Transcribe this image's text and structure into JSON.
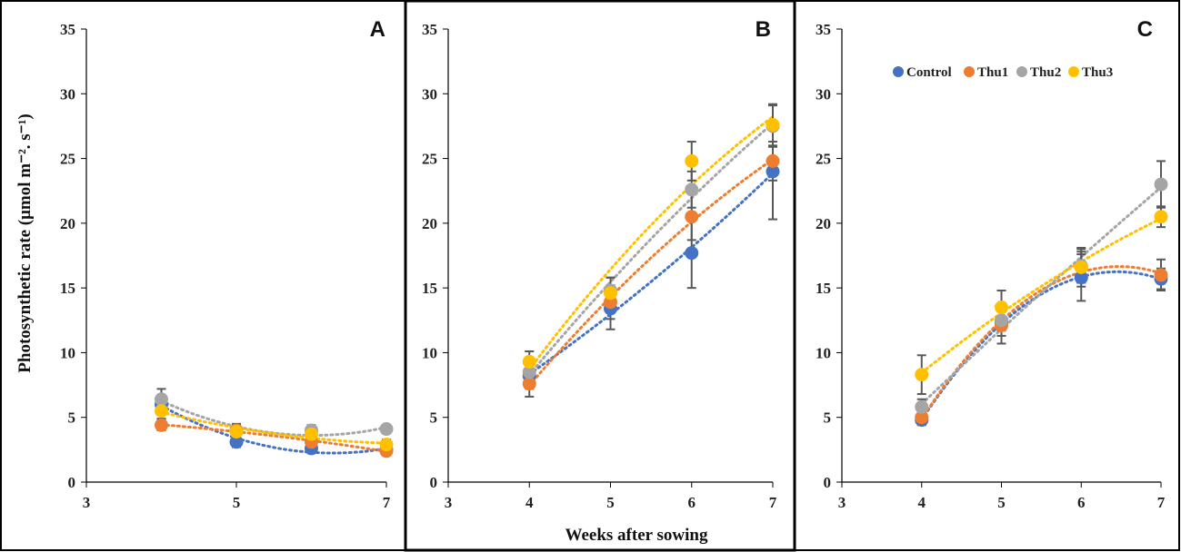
{
  "figure": {
    "ylabel": "Photosynthetic rate (μmol m⁻². s⁻¹)",
    "xlabel": "Weeks after sowing"
  },
  "legend": [
    "Control",
    "Thu1",
    "Thu2",
    "Thu3"
  ],
  "colors": {
    "Control": "#4472C4",
    "Thu1": "#ED7D31",
    "Thu2": "#A5A5A5",
    "Thu3": "#FFC000",
    "errorbar": "#595959",
    "axis": "#000000"
  },
  "chart_data": [
    {
      "type": "scatter",
      "panel": "A",
      "title": "A",
      "xlabel": "",
      "ylabel": "Photosynthetic rate (μmol m⁻². s⁻¹)",
      "xlim": [
        3,
        7
      ],
      "ylim": [
        0,
        35
      ],
      "xticks": [
        3,
        5,
        7
      ],
      "yticks": [
        0,
        5,
        10,
        15,
        20,
        25,
        30,
        35
      ],
      "trendline": "dotted polynomial",
      "x": [
        4,
        5,
        6,
        7
      ],
      "series": [
        {
          "name": "Control",
          "values": [
            6.0,
            3.1,
            2.6,
            2.5
          ],
          "errors": [
            0.6,
            0.4,
            0.3,
            0.3
          ]
        },
        {
          "name": "Thu1",
          "values": [
            4.4,
            4.0,
            3.1,
            2.4
          ],
          "errors": [
            0.4,
            0.5,
            0.4,
            0.3
          ]
        },
        {
          "name": "Thu2",
          "values": [
            6.4,
            3.9,
            4.0,
            4.1
          ],
          "errors": [
            0.8,
            0.5,
            0.4,
            0.3
          ]
        },
        {
          "name": "Thu3",
          "values": [
            5.5,
            3.9,
            3.7,
            2.9
          ],
          "errors": [
            0.6,
            0.5,
            0.4,
            0.4
          ]
        }
      ]
    },
    {
      "type": "scatter",
      "panel": "B",
      "title": "B",
      "xlabel": "Weeks after sowing",
      "ylabel": "",
      "xlim": [
        3,
        7
      ],
      "ylim": [
        0,
        35
      ],
      "xticks": [
        3,
        4,
        5,
        6,
        7
      ],
      "yticks": [
        0,
        5,
        10,
        15,
        20,
        25,
        30,
        35
      ],
      "trendline": "dotted polynomial",
      "x": [
        4,
        5,
        6,
        7
      ],
      "series": [
        {
          "name": "Control",
          "values": [
            8.2,
            13.4,
            17.7,
            24.0
          ],
          "errors": [
            1.0,
            1.6,
            2.7,
            3.7
          ]
        },
        {
          "name": "Thu1",
          "values": [
            7.6,
            13.9,
            20.5,
            24.8
          ],
          "errors": [
            1.0,
            1.3,
            1.8,
            1.5
          ]
        },
        {
          "name": "Thu2",
          "values": [
            8.5,
            14.8,
            22.6,
            27.5
          ],
          "errors": [
            0.8,
            1.0,
            1.4,
            1.6
          ]
        },
        {
          "name": "Thu3",
          "values": [
            9.3,
            14.6,
            24.8,
            27.6
          ],
          "errors": [
            0.8,
            1.2,
            1.5,
            1.6
          ]
        }
      ]
    },
    {
      "type": "scatter",
      "panel": "C",
      "title": "C",
      "xlabel": "",
      "ylabel": "",
      "xlim": [
        3,
        7
      ],
      "ylim": [
        0,
        35
      ],
      "xticks": [
        3,
        4,
        5,
        6,
        7
      ],
      "yticks": [
        0,
        5,
        10,
        15,
        20,
        25,
        30,
        35
      ],
      "legend": "top",
      "trendline": "dotted polynomial",
      "x": [
        4,
        5,
        6,
        7
      ],
      "series": [
        {
          "name": "Control",
          "values": [
            4.8,
            12.3,
            15.8,
            15.7
          ],
          "errors": [
            0.4,
            1.0,
            1.8,
            0.8
          ]
        },
        {
          "name": "Thu1",
          "values": [
            5.0,
            12.1,
            16.6,
            16.0
          ],
          "errors": [
            0.5,
            1.4,
            1.5,
            1.2
          ]
        },
        {
          "name": "Thu2",
          "values": [
            5.8,
            12.5,
            16.7,
            23.0
          ],
          "errors": [
            0.6,
            0.8,
            1.3,
            1.8
          ]
        },
        {
          "name": "Thu3",
          "values": [
            8.3,
            13.5,
            16.6,
            20.5
          ],
          "errors": [
            1.5,
            1.3,
            1.2,
            0.8
          ]
        }
      ]
    }
  ]
}
